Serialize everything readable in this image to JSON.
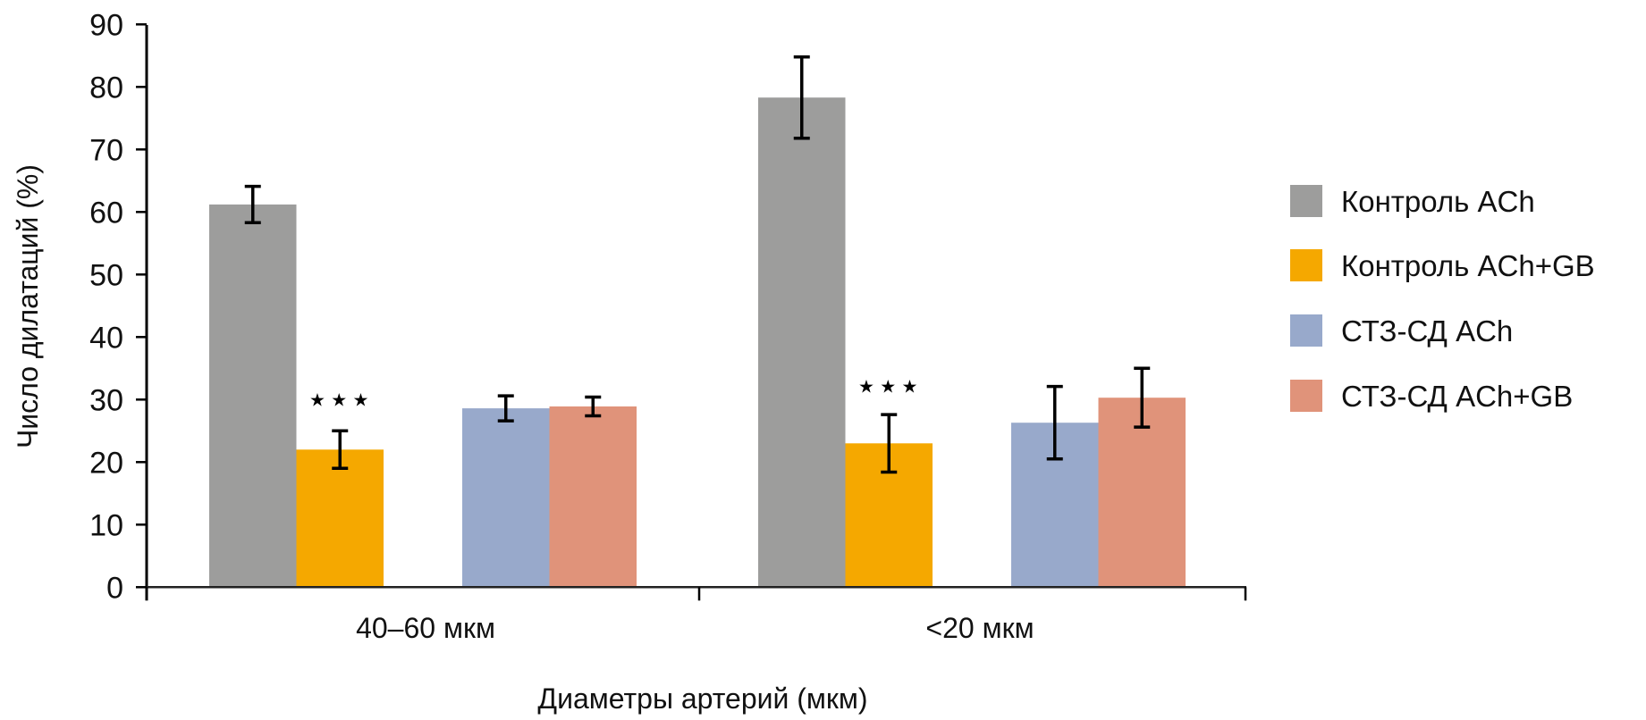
{
  "chart_data": {
    "type": "bar",
    "title": "",
    "xlabel": "Диаметры артерий (мкм)",
    "ylabel": "Число дилатаций (%)",
    "ylim": [
      0,
      90
    ],
    "yticks": [
      0,
      10,
      20,
      30,
      40,
      50,
      60,
      70,
      80,
      90
    ],
    "grid": false,
    "legend_position": "right",
    "categories": [
      "40–60 мкм",
      "<20 мкм"
    ],
    "series": [
      {
        "name": "Контроль ACh",
        "color": "#9d9d9c",
        "values": [
          61.2,
          78.3
        ],
        "errors": [
          2.9,
          6.5
        ]
      },
      {
        "name": "Контроль ACh+GB",
        "color": "#f5a800",
        "values": [
          22.0,
          23.0
        ],
        "errors": [
          3.0,
          4.6
        ]
      },
      {
        "name": "СТЗ-СД ACh",
        "color": "#98a9cb",
        "values": [
          28.6,
          26.3
        ],
        "errors": [
          2.0,
          5.8
        ]
      },
      {
        "name": "СТЗ-СД ACh+GB",
        "color": "#e0937a",
        "values": [
          28.9,
          30.3
        ],
        "errors": [
          1.5,
          4.7
        ]
      }
    ],
    "annotations": [
      {
        "category": "40–60 мкм",
        "series": "Контроль ACh+GB",
        "text": "★ ★ ★",
        "value": 30.0
      },
      {
        "category": "<20 мкм",
        "series": "Контроль ACh+GB",
        "text": "★ ★ ★",
        "value": 32.1
      }
    ]
  }
}
